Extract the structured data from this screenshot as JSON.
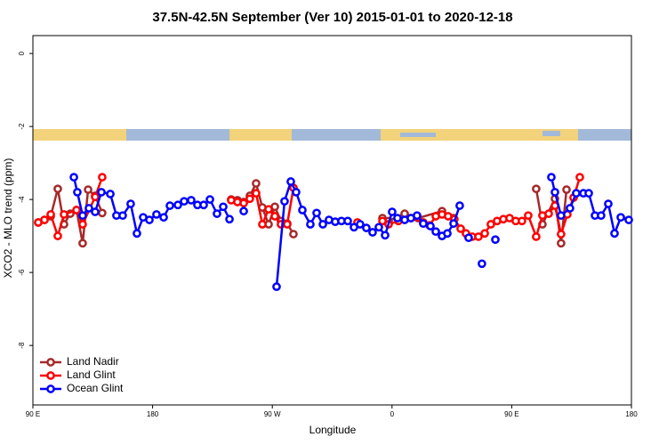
{
  "chart_data": {
    "type": "line",
    "title": "37.5N-42.5N September (Ver 10)   2015-01-01 to 2020-12-18",
    "x_label": "Longitude",
    "y_label": "XCO2 - MLO trend (ppm)",
    "xlim": [
      90,
      540
    ],
    "ylim": [
      -9.63,
      0.49
    ],
    "xticks": [
      {
        "value": 90,
        "label": "90 E"
      },
      180,
      {
        "value": 270,
        "label": "90 W"
      },
      {
        "value": 360,
        "label": "0"
      },
      {
        "value": 450,
        "label": "90 E"
      },
      {
        "value": 540,
        "label": "180"
      }
    ],
    "yticks": [
      0,
      -2,
      -4,
      -6,
      -8
    ],
    "legend": "lower left",
    "series": [
      {
        "name": "Land Nadir",
        "color": "#a52a2a",
        "x": [
          94.0,
          98.7,
          103.4,
          108.7,
          113.4,
          118.1,
          122.8,
          127.4,
          131.5,
          136.8,
          142.1,
          190,
          239.1,
          243.8,
          248.5,
          253.1,
          257.8,
          262.5,
          267.2,
          271.9,
          276.5,
          281.2,
          285.9,
          320,
          352.8,
          357.4,
          369.5,
          379.5,
          397.6,
          406.3,
          440,
          468.4,
          473.1,
          482.5,
          487.1,
          491.2
        ],
        "values": [
          -4.63,
          -4.56,
          -4.46,
          -3.71,
          -4.68,
          -4.39,
          -4.29,
          -5.2,
          -3.73,
          -3.9,
          -4.37,
          null,
          -4.0,
          -4.02,
          -4.07,
          -3.9,
          -3.56,
          -4.22,
          -4.68,
          -4.2,
          -4.59,
          -4.66,
          -4.95,
          null,
          -4.51,
          -4.59,
          -4.39,
          -4.51,
          -4.32,
          -4.51,
          null,
          -3.71,
          -4.68,
          -3.98,
          -5.2,
          -3.73
        ]
      },
      {
        "name": "Land Glint",
        "color": "#ff0000",
        "x": [
          94.0,
          98.7,
          103.4,
          108.7,
          113.4,
          122.8,
          127.4,
          136.8,
          142.1,
          190,
          239.1,
          243.8,
          248.5,
          253.1,
          257.8,
          262.5,
          267.2,
          271.9,
          276.5,
          281.2,
          285.9,
          310,
          334.0,
          345,
          352.8,
          357.4,
          364.8,
          374.2,
          383.5,
          388.2,
          392.9,
          397.6,
          402.2,
          406.9,
          411.6,
          415.6,
          420.3,
          425.0,
          429.7,
          434.3,
          439.0,
          443.7,
          448.4,
          453.0,
          457.7,
          462.4,
          468.4,
          473.1,
          477.8,
          482.5,
          487.1,
          491.8,
          496.5,
          501.2
        ],
        "values": [
          -4.63,
          -4.56,
          -4.41,
          -5.0,
          -4.41,
          -4.29,
          -4.68,
          -3.93,
          -3.39,
          null,
          -4.02,
          -4.07,
          -4.1,
          -3.98,
          -3.83,
          -4.68,
          -4.27,
          -4.46,
          -4.68,
          -4.68,
          -3.68,
          null,
          -4.63,
          null,
          -4.59,
          -4.68,
          -4.59,
          -4.51,
          -4.63,
          -4.71,
          -4.46,
          -4.41,
          -4.46,
          -4.54,
          -4.8,
          -4.93,
          -5.02,
          -5.02,
          -4.93,
          -4.68,
          -4.59,
          -4.54,
          -4.51,
          -4.59,
          -4.59,
          -4.44,
          -5.02,
          -4.44,
          -4.39,
          -4.17,
          -4.95,
          -4.41,
          -3.95,
          -3.39
        ]
      },
      {
        "name": "Ocean Glint",
        "color": "#0000ff",
        "x": [
          120.8,
          123.4,
          127.4,
          132.1,
          136.8,
          141.5,
          148.2,
          152.8,
          157.5,
          163.5,
          168.2,
          172.9,
          177.6,
          182.9,
          188.3,
          193.0,
          199.0,
          203.7,
          209.0,
          213.7,
          218.4,
          223.1,
          228.4,
          233.1,
          237.8,
          243,
          248.5,
          260,
          273.2,
          279.2,
          283.9,
          287.9,
          292.6,
          298.6,
          303.3,
          308.0,
          312.6,
          317.3,
          322.0,
          326.7,
          331.4,
          336.0,
          340.7,
          345.4,
          350.1,
          354.8,
          360.1,
          364.1,
          369.5,
          374.2,
          378.8,
          383.5,
          388.9,
          392.9,
          397.6,
          401.6,
          406.3,
          410.9,
          414,
          417.6,
          422,
          427.6,
          432,
          437.7,
          470,
          479.8,
          482.5,
          487.1,
          493.8,
          498.5,
          503.9,
          507.9,
          512.6,
          517.2,
          522.6,
          527.3,
          532.0,
          538.0
        ],
        "values": [
          -3.39,
          -3.8,
          -4.44,
          -4.24,
          -4.34,
          -3.8,
          -3.85,
          -4.44,
          -4.44,
          -4.12,
          -4.93,
          -4.49,
          -4.56,
          -4.41,
          -4.49,
          -4.17,
          -4.15,
          -4.05,
          -4.02,
          -4.15,
          -4.15,
          -4.0,
          -4.39,
          -4.2,
          -4.54,
          null,
          -4.32,
          null,
          -6.39,
          -4.05,
          -3.51,
          -3.8,
          -4.29,
          -4.68,
          -4.37,
          -4.68,
          -4.56,
          -4.61,
          -4.59,
          -4.59,
          -4.76,
          -4.68,
          -4.78,
          -4.9,
          -4.76,
          -4.98,
          -4.34,
          -4.51,
          -4.56,
          -4.51,
          -4.44,
          -4.66,
          -4.73,
          -4.88,
          -5.0,
          -4.93,
          -4.66,
          -4.17,
          null,
          -5.05,
          null,
          -5.76,
          null,
          -5.1,
          null,
          -3.39,
          -3.8,
          -4.44,
          -4.24,
          -3.83,
          -3.83,
          -3.83,
          -4.44,
          -4.44,
          -4.12,
          -4.93,
          -4.49,
          -4.56
        ]
      }
    ]
  }
}
